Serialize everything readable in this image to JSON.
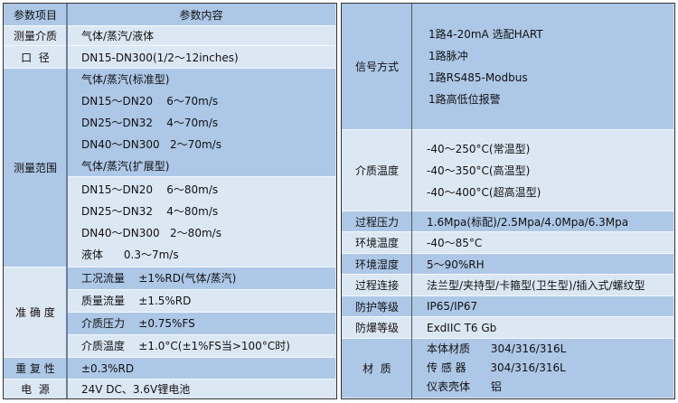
{
  "left": {
    "header": {
      "item": "参数项目",
      "content": "参数内容"
    },
    "medium": {
      "label": "测量介质",
      "value": "气体/蒸汽/液体"
    },
    "diameter": {
      "label": "口  径",
      "value": "DN15-DN300(1/2～12inches)"
    },
    "range": {
      "label": "测量范围",
      "standard": [
        "气体/蒸汽(标准型)",
        "DN15～DN20    6～70m/s",
        "DN25～DN32    4～70m/s",
        "DN40～DN300   2～70m/s",
        "气体/蒸汽(扩展型)"
      ],
      "extended": [
        "DN15～DN20    6～80m/s",
        "DN25～DN32    4～80m/s",
        "DN40～DN300   2～80m/s",
        "液体      0.3～7m/s"
      ]
    },
    "accuracy": {
      "label": "准 确 度",
      "rows": [
        "工况流量    ±1%RD(气体/蒸汽)",
        "质量流量    ±1.5%RD",
        "介质压力    ±0.75%FS",
        "介质温度    ±1.0°C(±1%FS当>100°C时)"
      ]
    },
    "repeatability": {
      "label": "重 复 性",
      "value": "±0.3%RD"
    },
    "power": {
      "label": "电  源",
      "value": "24V DC、3.6V锂电池"
    }
  },
  "right": {
    "signal": {
      "label": "信号方式",
      "lines": [
        "1路4-20mA 选配HART",
        "1路脉冲",
        "1路RS485-Modbus",
        "1路高低位报警"
      ]
    },
    "medium_temp": {
      "label": "介质温度",
      "lines": [
        "-40～250°C(常温型)",
        "-40～350°C(高温型)",
        "-40～400°C(超高温型)"
      ]
    },
    "rows": [
      {
        "label": "过程压力",
        "value": "1.6Mpa(标配)/2.5Mpa/4.0Mpa/6.3Mpa"
      },
      {
        "label": "环境温度",
        "value": "-40～85°C"
      },
      {
        "label": "环境湿度",
        "value": "5～90%RH"
      },
      {
        "label": "过程连接",
        "value": "法兰型/夹持型/卡箍型(卫生型)/插入式/螺纹型"
      },
      {
        "label": "防护等级",
        "value": "IP65/IP67"
      },
      {
        "label": "防爆等级",
        "value": "ExdIIC T6 Gb"
      }
    ],
    "material": {
      "label": "材  质",
      "lines": [
        "本体材质      304/316/316L",
        "传 感 器       304/316/316L",
        "仪表壳体      铝"
      ]
    }
  },
  "colors": {
    "dark": "#adc7e7",
    "light": "#dce7f4",
    "border": "#333333"
  }
}
